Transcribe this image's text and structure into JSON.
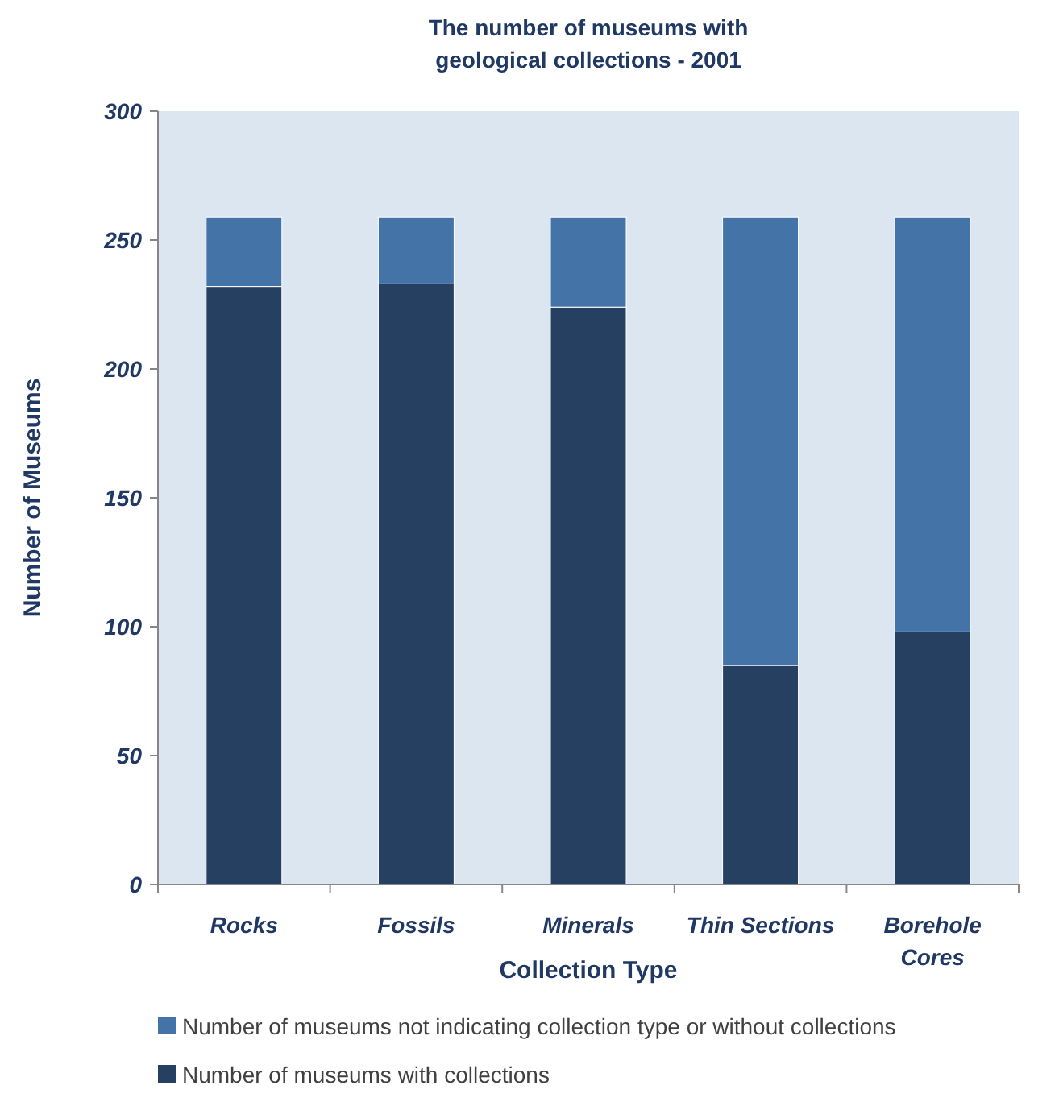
{
  "chart_data": {
    "type": "bar",
    "title": "The number of museums with geological collections - 2001",
    "xlabel": "Collection Type",
    "ylabel": "Number of Museums",
    "categories": [
      "Rocks",
      "Fossils",
      "Minerals",
      "Thin Sections",
      "Borehole Cores"
    ],
    "stacked": true,
    "series": [
      {
        "name": "Number of museums with collections",
        "color": "#254061",
        "values": [
          232,
          233,
          224,
          85,
          98
        ]
      },
      {
        "name": "Number of museums not indicating collection type or without collections",
        "color": "#4473a8",
        "values": [
          27,
          26,
          35,
          174,
          161
        ]
      }
    ],
    "ylim": [
      0,
      300
    ],
    "yticks": [
      0,
      50,
      100,
      150,
      200,
      250,
      300
    ],
    "grid": false,
    "legend": "bottom"
  }
}
